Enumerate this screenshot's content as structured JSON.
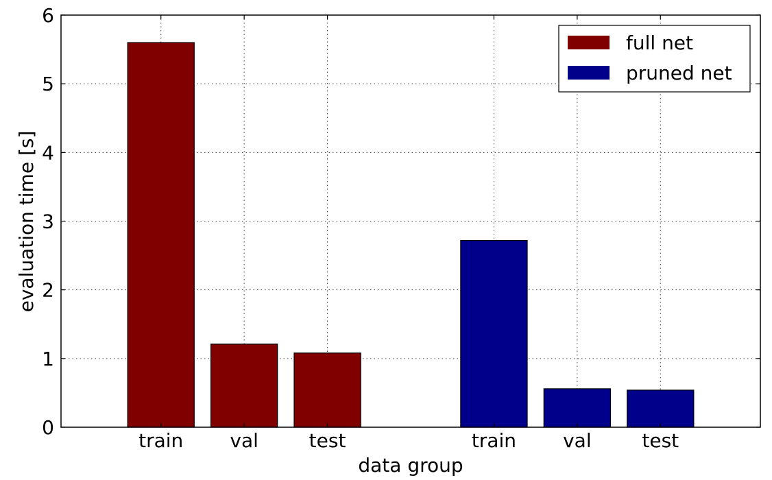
{
  "chart_data": {
    "type": "bar",
    "title": "",
    "xlabel": "data group",
    "ylabel": "evaluation time [s]",
    "ylim": [
      0,
      6
    ],
    "yticks": [
      0,
      1,
      2,
      3,
      4,
      5,
      6
    ],
    "grid": true,
    "legend_position": "top-right",
    "groups": [
      {
        "series": "full net",
        "color": "#800000",
        "categories": [
          "train",
          "val",
          "test"
        ],
        "values": [
          5.6,
          1.21,
          1.08
        ]
      },
      {
        "series": "pruned net",
        "color": "#00008b",
        "categories": [
          "train",
          "val",
          "test"
        ],
        "values": [
          2.72,
          0.56,
          0.54
        ]
      }
    ],
    "legend": [
      {
        "name": "full net",
        "color": "#800000"
      },
      {
        "name": "pruned net",
        "color": "#00008b"
      }
    ]
  }
}
